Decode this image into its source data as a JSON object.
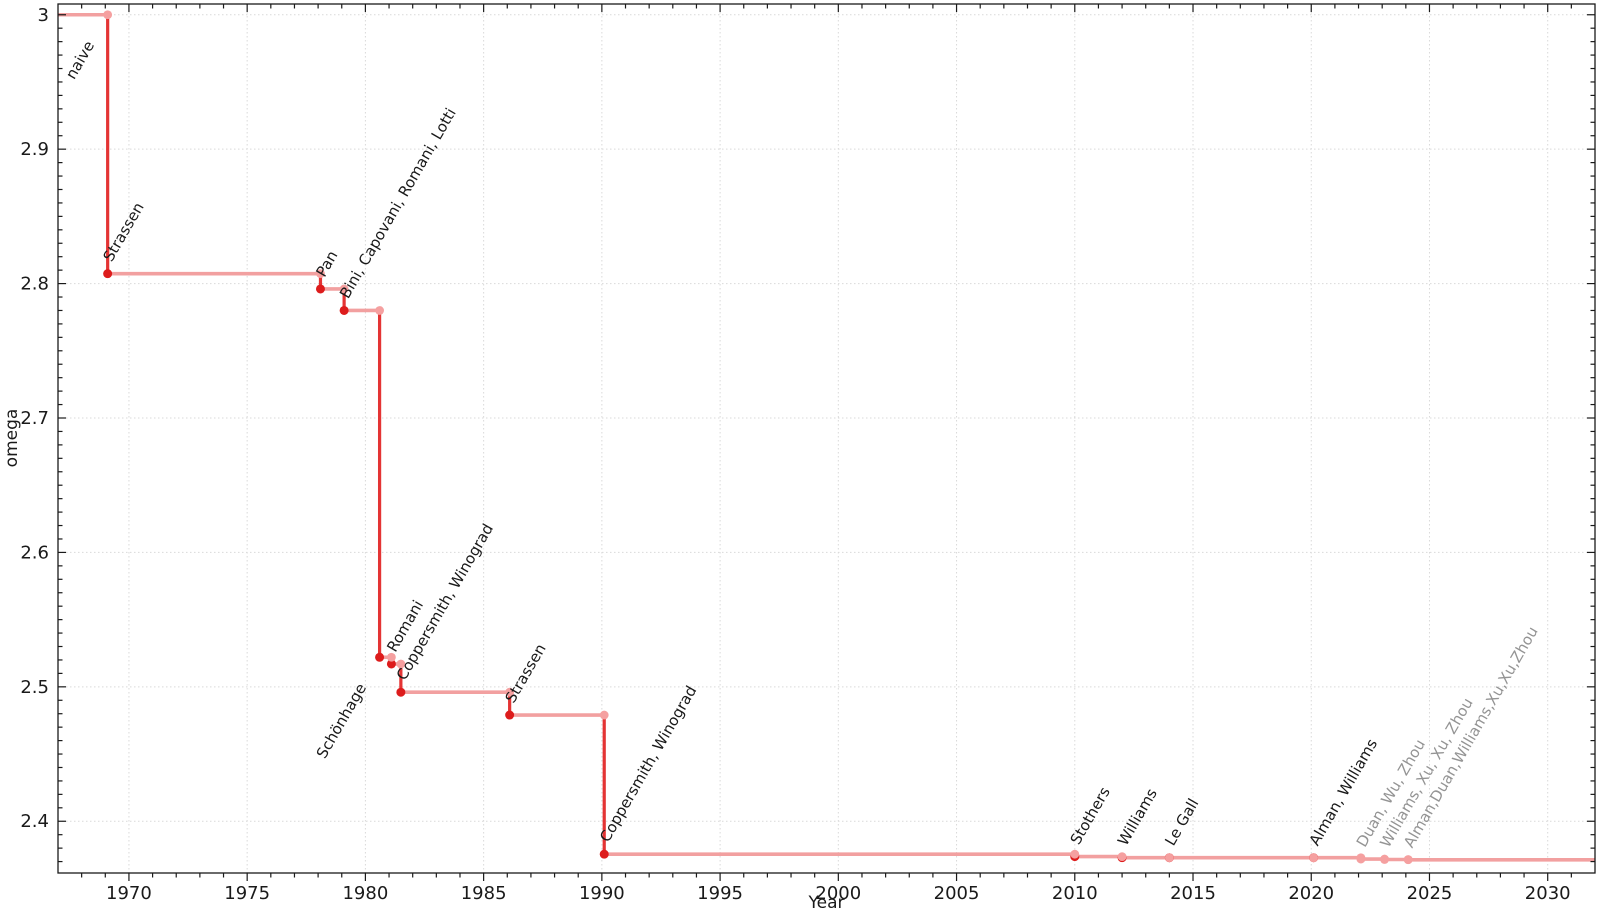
{
  "page": {
    "background": "#ffffff",
    "description": "Step chart of the best known upper bound on the matrix multiplication exponent omega over time"
  },
  "chart_data": {
    "type": "line",
    "subtype": "step",
    "title": "",
    "xlabel": "Year",
    "ylabel": "omega",
    "xlim": [
      1967,
      2032
    ],
    "ylim": [
      2.3615,
      3.008
    ],
    "grid": "dotted lines at major ticks on both axes",
    "legend": "none",
    "x_major_ticks": [
      1970,
      1975,
      1980,
      1985,
      1990,
      1995,
      2000,
      2005,
      2010,
      2015,
      2020,
      2025,
      2030
    ],
    "x_minor_tick_step": 1,
    "y_major_ticks": [
      {
        "value": 3.0,
        "label": "3"
      },
      {
        "value": 2.9,
        "label": "2.9"
      },
      {
        "value": 2.8,
        "label": "2.8"
      },
      {
        "value": 2.7,
        "label": "2.7"
      },
      {
        "value": 2.6,
        "label": "2.6"
      },
      {
        "value": 2.5,
        "label": "2.5"
      },
      {
        "value": 2.4,
        "label": "2.4"
      }
    ],
    "y_minor_tick_step": 0.01,
    "initial_segment": {
      "label": "naive",
      "omega": 3.0
    },
    "points": [
      {
        "year": 1969.1,
        "omega": 2.8074,
        "label": "Strassen"
      },
      {
        "year": 1978.1,
        "omega": 2.796,
        "label": "Pan"
      },
      {
        "year": 1979.1,
        "omega": 2.78,
        "label": "Bini, Capovani, Romani, Lotti"
      },
      {
        "year": 1980.6,
        "omega": 2.522,
        "label": "Schönhage",
        "label_anchor": "end"
      },
      {
        "year": 1981.1,
        "omega": 2.517,
        "label": "Romani"
      },
      {
        "year": 1981.5,
        "omega": 2.496,
        "label": "Coppersmith, Winograd"
      },
      {
        "year": 1986.1,
        "omega": 2.479,
        "label": "Strassen"
      },
      {
        "year": 1990.1,
        "omega": 2.3755,
        "label": "Coppersmith, Winograd"
      },
      {
        "year": 2010.0,
        "omega": 2.3737,
        "label": "Stothers"
      },
      {
        "year": 2012.0,
        "omega": 2.3729,
        "label": "Williams"
      },
      {
        "year": 2014.0,
        "omega": 2.3728639,
        "label": "Le Gall"
      },
      {
        "year": 2020.1,
        "omega": 2.3728596,
        "label": "Alman, Williams"
      },
      {
        "year": 2022.1,
        "omega": 2.371866,
        "label": "Duan, Wu, Zhou",
        "recent": true
      },
      {
        "year": 2023.1,
        "omega": 2.371552,
        "label": "Williams, Xu, Xu, Zhou",
        "recent": true
      },
      {
        "year": 2024.1,
        "omega": 2.371339,
        "label": "Alman,Duan,Williams,Xu,Xu,Zhou",
        "recent": true
      }
    ],
    "colors": {
      "marker_dark": "#dd1c1c",
      "marker_light": "#f5a0a0",
      "line_vertical": "#e43434",
      "line_horizontal": "#f2a0a0",
      "grid": "#d9d9d9",
      "axis": "#1a1a1a",
      "tick_label": "#1a1a1a",
      "label_black": "#1a1a1a",
      "label_gray": "#949494"
    }
  }
}
